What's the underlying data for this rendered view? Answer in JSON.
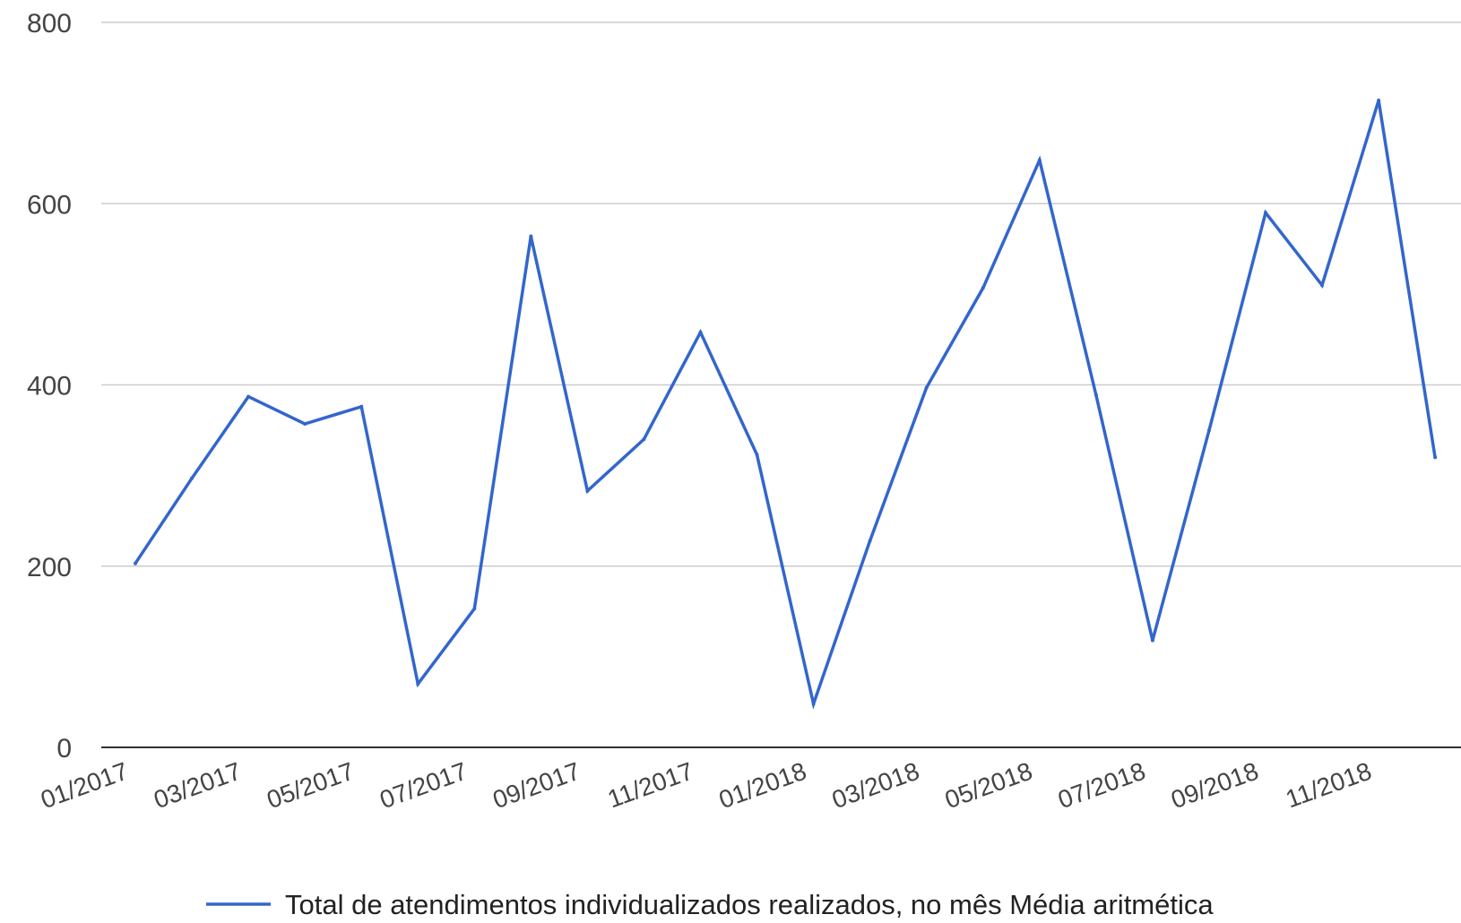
{
  "chart_data": {
    "type": "line",
    "title": "",
    "xlabel": "",
    "ylabel": "",
    "ylim": [
      0,
      800
    ],
    "yticks": [
      "0",
      "200",
      "400",
      "600",
      "800"
    ],
    "grid": true,
    "legend_position": "bottom",
    "x": [
      "01/2017",
      "02/2017",
      "03/2017",
      "04/2017",
      "05/2017",
      "06/2017",
      "07/2017",
      "08/2017",
      "09/2017",
      "10/2017",
      "11/2017",
      "12/2017",
      "01/2018",
      "02/2018",
      "03/2018",
      "04/2018",
      "05/2018",
      "06/2018",
      "07/2018",
      "08/2018",
      "09/2018",
      "10/2018",
      "11/2018",
      "12/2018"
    ],
    "xtick_labels": [
      "01/2017",
      "03/2017",
      "05/2017",
      "07/2017",
      "09/2017",
      "11/2017",
      "01/2018",
      "03/2018",
      "05/2018",
      "07/2018",
      "09/2018",
      "11/2018"
    ],
    "series": [
      {
        "name": "Total de atendimentos individualizados realizados, no mês Média aritmética",
        "color": "#3366cc",
        "values": [
          203,
          297,
          387,
          357,
          376,
          70,
          153,
          564,
          283,
          340,
          458,
          323,
          48,
          228,
          397,
          507,
          648,
          389,
          118,
          350,
          590,
          510,
          714,
          320
        ]
      }
    ]
  }
}
